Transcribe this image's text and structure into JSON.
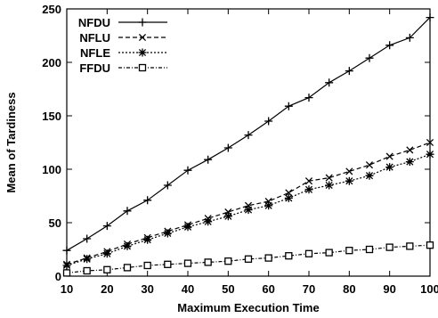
{
  "chart_data": {
    "type": "line",
    "xlabel": "Maximum Execution Time",
    "ylabel": "Mean of Tardiness",
    "xlim": [
      10,
      100
    ],
    "ylim": [
      0,
      250
    ],
    "xticks": [
      10,
      20,
      30,
      40,
      50,
      60,
      70,
      80,
      90,
      100
    ],
    "yticks": [
      0,
      50,
      100,
      150,
      200,
      250
    ],
    "grid": false,
    "legend_position": "top-left",
    "x": [
      10,
      15,
      20,
      25,
      30,
      35,
      40,
      45,
      50,
      55,
      60,
      65,
      70,
      75,
      80,
      85,
      90,
      95,
      100
    ],
    "series": [
      {
        "name": "NFDU",
        "marker": "plus",
        "line": "solid",
        "values": [
          24,
          35,
          47,
          61,
          71,
          85,
          99,
          109,
          120,
          132,
          145,
          159,
          167,
          181,
          192,
          204,
          216,
          223,
          242
        ]
      },
      {
        "name": "NFLU",
        "marker": "x",
        "line": "dashed",
        "values": [
          11,
          17,
          23,
          30,
          36,
          42,
          48,
          54,
          60,
          66,
          70,
          78,
          89,
          92,
          98,
          104,
          112,
          118,
          125
        ]
      },
      {
        "name": "NFLE",
        "marker": "asterisk",
        "line": "dotted",
        "values": [
          10,
          16,
          21,
          28,
          34,
          40,
          46,
          51,
          56,
          62,
          66,
          73,
          81,
          85,
          89,
          94,
          102,
          107,
          114
        ]
      },
      {
        "name": "FFDU",
        "marker": "square",
        "line": "dash-dot",
        "values": [
          3,
          5,
          6,
          8,
          10,
          11,
          12,
          13,
          14,
          16,
          17,
          19,
          21,
          22,
          24,
          25,
          27,
          28,
          29
        ]
      }
    ]
  }
}
